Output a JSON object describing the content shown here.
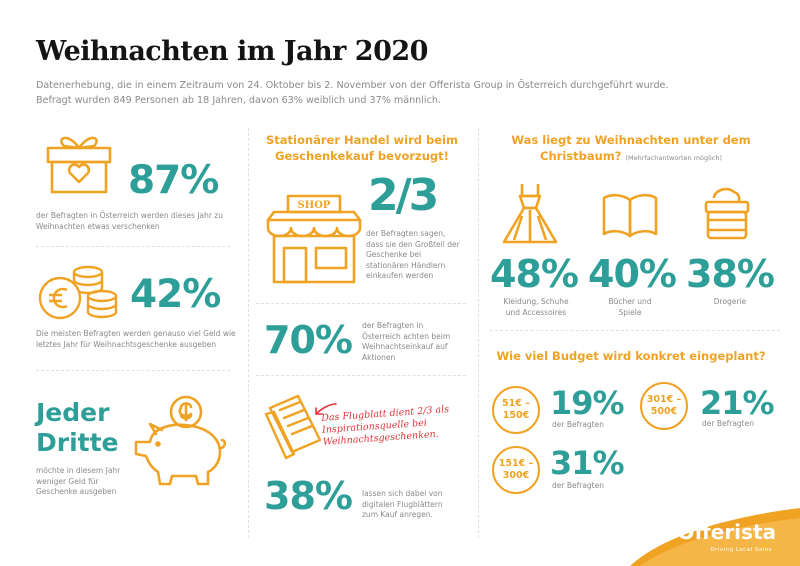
{
  "header": {
    "title": "Weihnachten im Jahr 2020",
    "intro_line1": "Datenerhebung, die in einem Zeitraum von 24. Oktober bis 2. November von der Offerista Group in Österreich durchgeführt wurde.",
    "intro_line2": "Befragt wurden 849 Personen ab 18 Jahren, davon 63% weiblich und 37% männlich."
  },
  "left": {
    "stat1": {
      "value": "87%",
      "text": "der Befragten in Österreich werden dieses Jahr zu Weihnachten etwas verschenken"
    },
    "stat2": {
      "value": "42%",
      "text": "Die meisten Befragten werden genauso viel Geld wie letztes Jahr für Weihnachtsgeschenke ausgeben"
    },
    "stat3": {
      "value_line1": "Jeder",
      "value_line2": "Dritte",
      "text": "möchte in diesem Jahr weniger Geld für Geschenke ausgeben"
    }
  },
  "middle": {
    "heading": "Stationärer Handel wird beim Geschenkekauf bevorzugt!",
    "shop_sign": "SHOP",
    "stat1": {
      "value": "2/3",
      "text": "der Befragten sagen, dass sie den Großteil der Geschenke bei stationären Händlern einkaufen werden"
    },
    "stat2": {
      "value": "70%",
      "text": "der Befragten in Österreich achten beim Weihnachtseinkauf auf Aktionen"
    },
    "flyer_quote": "Das Flugblatt dient 2/3 als Inspirationsquelle bei Weihnachtsgeschenken.",
    "stat3": {
      "value": "38%",
      "text": "lassen sich dabei von digitalen Flugblättern zum Kauf anregen."
    }
  },
  "right": {
    "heading_line1": "Was liegt zu Weihnachten unter dem",
    "heading_line2": "Christbaum?",
    "heading_note": "(Mehrfachantworten möglich)",
    "items": [
      {
        "value": "48%",
        "label": "Kleidung, Schuhe und Accessoires",
        "icon": "dress-icon"
      },
      {
        "value": "40%",
        "label": "Bücher und Spiele",
        "icon": "book-icon"
      },
      {
        "value": "38%",
        "label": "Drogerie",
        "icon": "cream-jar-icon"
      }
    ],
    "budget_heading": "Wie viel Budget wird konkret eingeplant?",
    "budget": [
      {
        "range_line1": "51€ –",
        "range_line2": "150€",
        "value": "19%",
        "label": "der Befragten"
      },
      {
        "range_line1": "301€ –",
        "range_line2": "500€",
        "value": "21%",
        "label": "der Befragten"
      },
      {
        "range_line1": "151€ –",
        "range_line2": "300€",
        "value": "31%",
        "label": "der Befragten"
      }
    ]
  },
  "brand": {
    "name": "Offerista",
    "tagline": "Driving Local Sales"
  },
  "colors": {
    "accent_orange": "#f0a223",
    "accent_teal": "#2e9f98",
    "quote_red": "#e0343a"
  }
}
